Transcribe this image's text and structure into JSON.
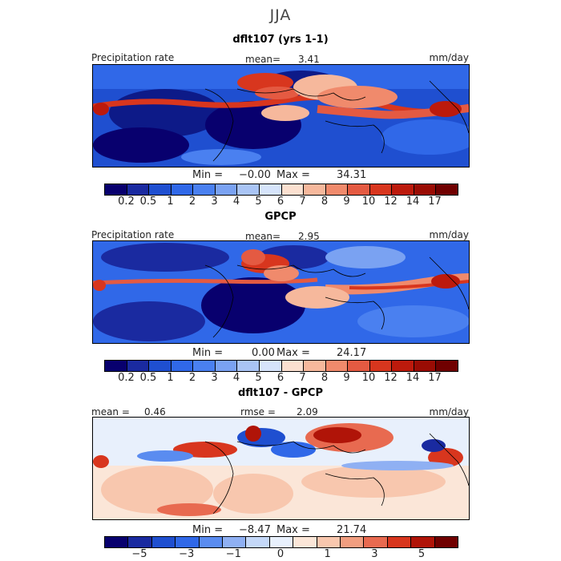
{
  "chart_data": {
    "type": "heatmap",
    "title": "JJA",
    "panels": [
      {
        "title": "dflt107 (yrs 1-1)",
        "left_label": "Precipitation rate",
        "center_label": "mean=",
        "center_value": "3.41",
        "units": "mm/day",
        "min_label": "Min =",
        "min_value": "−0.00",
        "max_label": "Max =",
        "max_value": "34.31",
        "colorbar_ticks": [
          "0.2",
          "0.5",
          "1",
          "2",
          "3",
          "4",
          "5",
          "6",
          "7",
          "8",
          "9",
          "10",
          "12",
          "14",
          "17"
        ]
      },
      {
        "title": "GPCP",
        "left_label": "Precipitation rate",
        "center_label": "mean=",
        "center_value": "2.95",
        "units": "mm/day",
        "min_label": "Min =",
        "min_value": "0.00",
        "max_label": "Max =",
        "max_value": "24.17",
        "colorbar_ticks": [
          "0.2",
          "0.5",
          "1",
          "2",
          "3",
          "4",
          "5",
          "6",
          "7",
          "8",
          "9",
          "10",
          "12",
          "14",
          "17"
        ]
      },
      {
        "title": "dflt107 - GPCP",
        "left_label": "mean =",
        "left_value": "0.46",
        "center_label": "rmse =",
        "center_value": "2.09",
        "units": "mm/day",
        "min_label": "Min =",
        "min_value": "−8.47",
        "max_label": "Max =",
        "max_value": "21.74",
        "colorbar_ticks": [
          "−5",
          "−3",
          "−1",
          "0",
          "1",
          "3",
          "5"
        ]
      }
    ],
    "colors": {
      "precip": [
        "#08006e",
        "#1a2aa0",
        "#1f4fd0",
        "#3068e8",
        "#4a80f0",
        "#7aa2f2",
        "#a9c4f5",
        "#d6e4fb",
        "#fbe0d0",
        "#f6b89c",
        "#f08a6c",
        "#e45a42",
        "#d8361e",
        "#bc1a0c",
        "#9a0c04",
        "#700000"
      ],
      "diff": [
        "#08006e",
        "#1a2aa0",
        "#1f4fd0",
        "#3068e8",
        "#5a8cf0",
        "#8fb0f3",
        "#c4d8f8",
        "#e8f0fc",
        "#fbe6d8",
        "#f8c7ae",
        "#f19e80",
        "#e86a50",
        "#d8361e",
        "#b01408",
        "#700000"
      ]
    }
  }
}
